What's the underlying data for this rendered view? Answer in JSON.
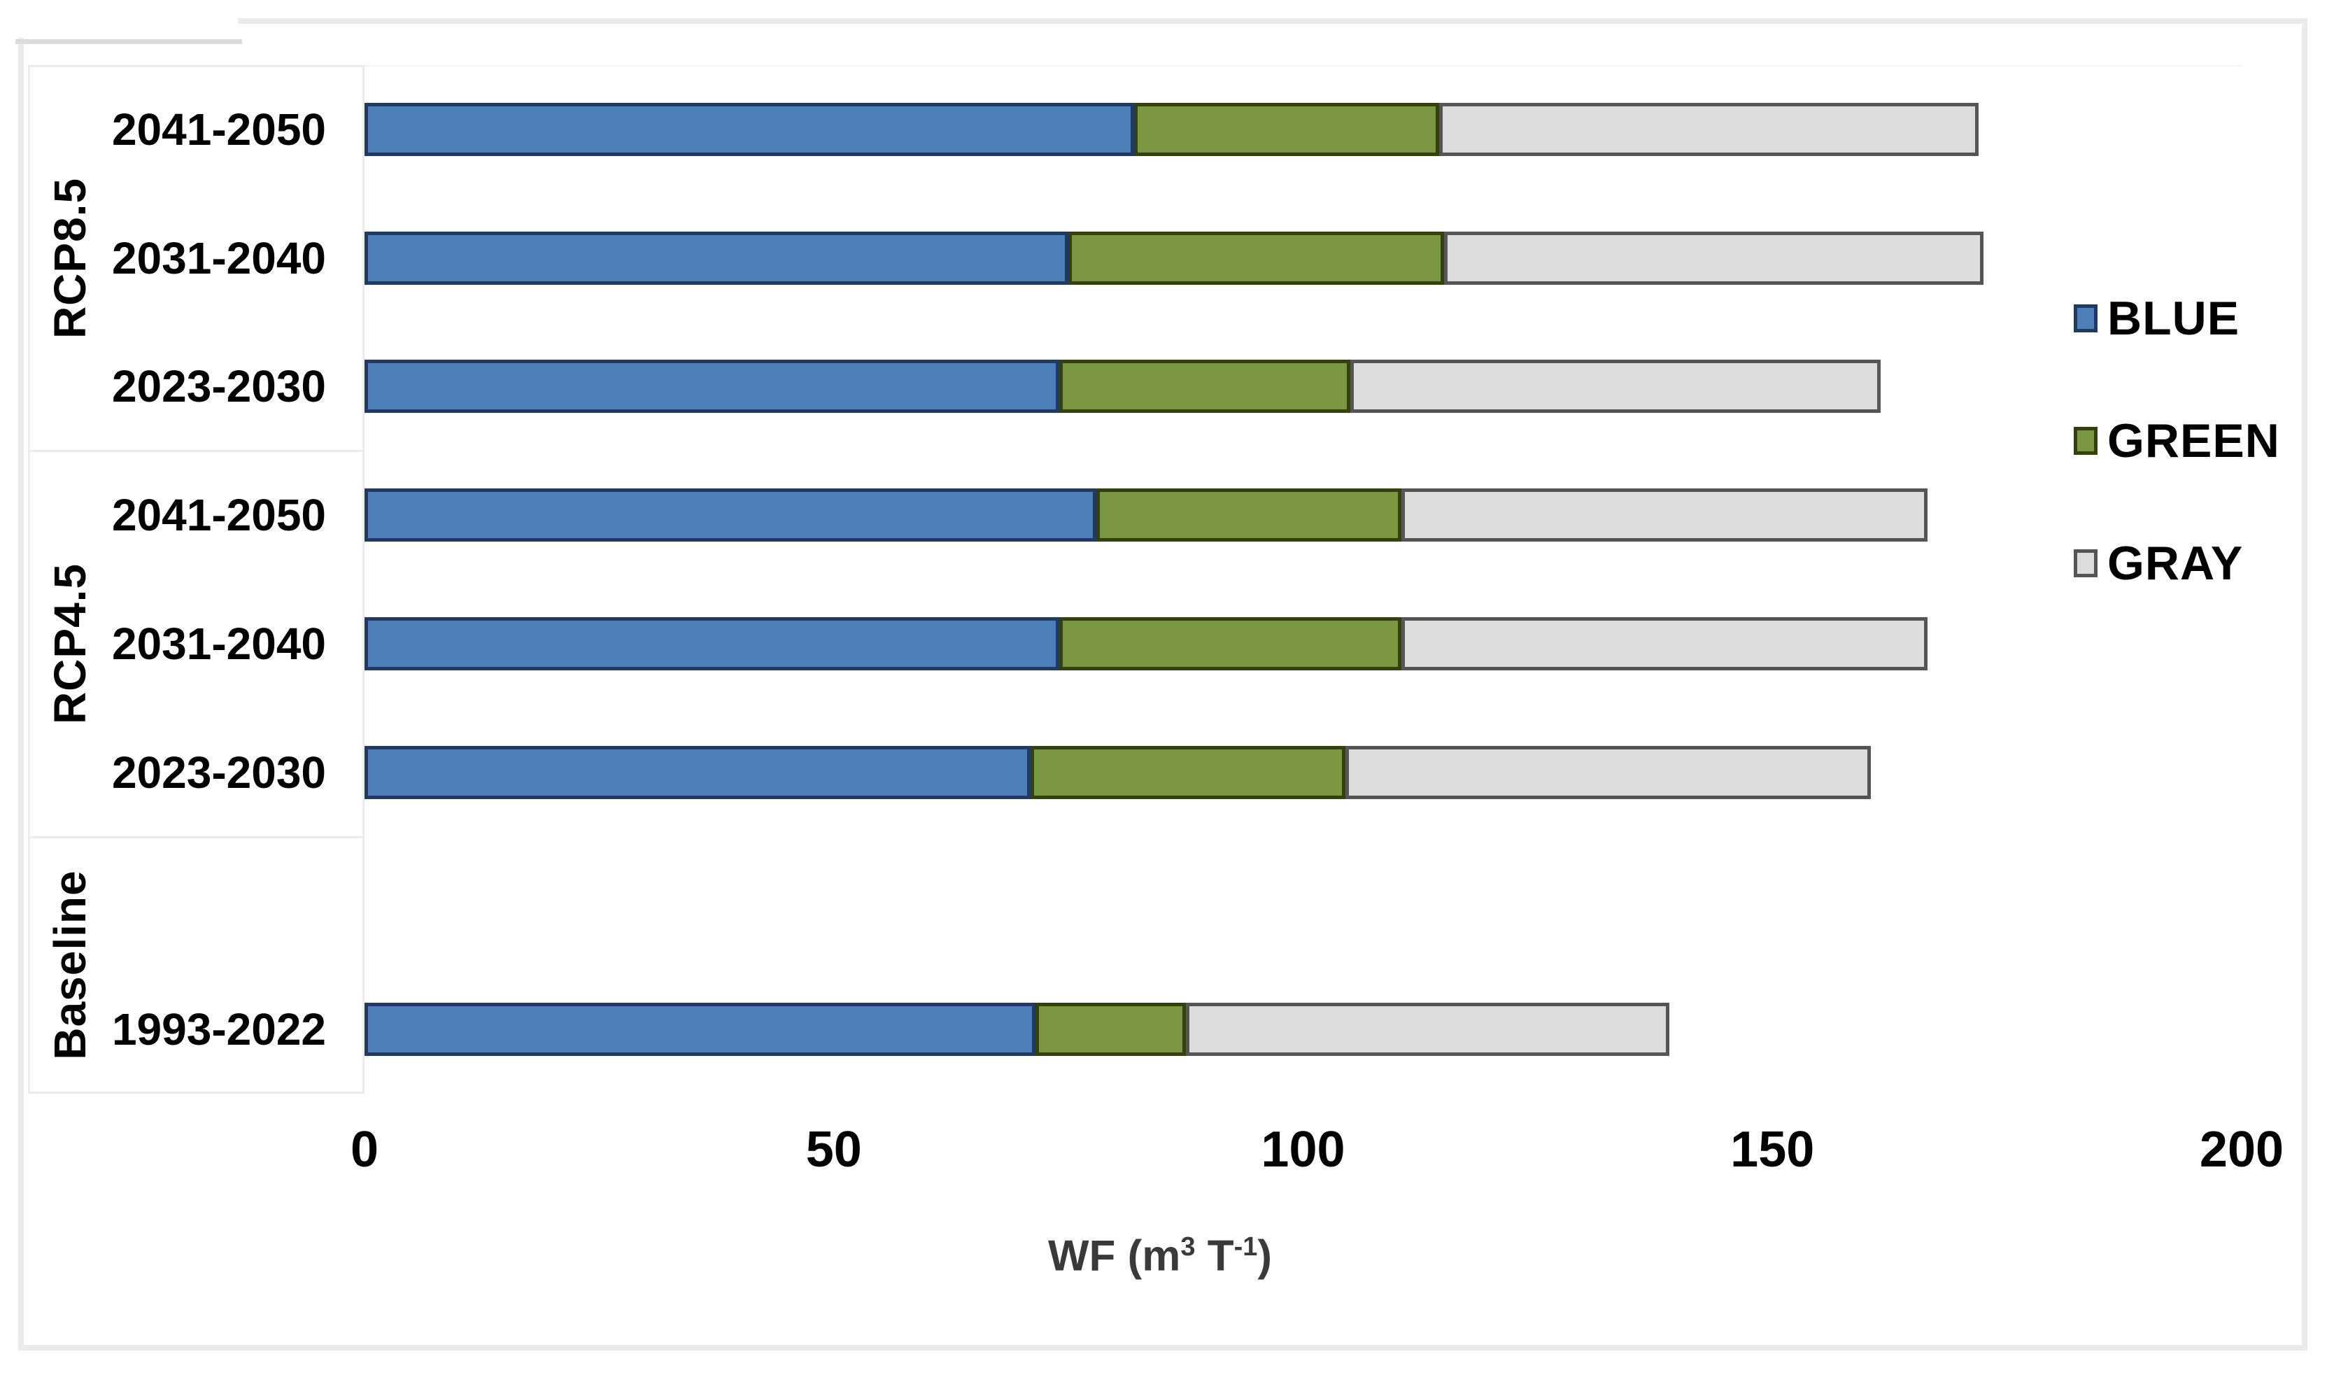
{
  "chart_data": {
    "type": "bar",
    "orientation": "horizontal",
    "stacked": true,
    "title": "",
    "xlabel": "WF (m3 T-1)",
    "xlabel_parts": {
      "pre": "WF (m",
      "sup1": "3",
      "mid": " T",
      "sup2": "-1",
      "post": ")"
    },
    "xlim": [
      0,
      200
    ],
    "xticks": [
      0,
      50,
      100,
      150,
      200
    ],
    "grid": false,
    "legend_position": "right",
    "legend": [
      {
        "label": "BLUE",
        "series": "blue"
      },
      {
        "label": "GREEN",
        "series": "green"
      },
      {
        "label": "GRAY",
        "series": "gray"
      }
    ],
    "series_order": [
      "blue",
      "green",
      "gray"
    ],
    "colors": {
      "blue": {
        "fill": "#4d80b9",
        "border": "#1f3b61"
      },
      "green": {
        "fill": "#789740",
        "border": "#35400f"
      },
      "gray": {
        "fill": "#dcdcdc",
        "border": "#555555"
      }
    },
    "frame_color": "#ebebeb",
    "panel_line_color": "#ececec",
    "groups": [
      {
        "label": "RCP8.5",
        "blank_rows_before": 0,
        "bars": [
          {
            "period": "2041-2050",
            "values": {
              "blue": 82,
              "green": 32.5,
              "gray": 57.5
            }
          },
          {
            "period": "2031-2040",
            "values": {
              "blue": 75,
              "green": 40,
              "gray": 57.5
            }
          },
          {
            "period": "2023-2030",
            "values": {
              "blue": 74,
              "green": 31,
              "gray": 56.5
            }
          }
        ]
      },
      {
        "label": "RCP4.5",
        "blank_rows_before": 0,
        "bars": [
          {
            "period": "2041-2050",
            "values": {
              "blue": 78,
              "green": 32.5,
              "gray": 56
            }
          },
          {
            "period": "2031-2040",
            "values": {
              "blue": 74,
              "green": 36.5,
              "gray": 56
            }
          },
          {
            "period": "2023-2030",
            "values": {
              "blue": 71,
              "green": 33.5,
              "gray": 56
            }
          }
        ]
      },
      {
        "label": "Baseline",
        "blank_rows_before": 1,
        "bars": [
          {
            "period": "1993-2022",
            "values": {
              "blue": 71.5,
              "green": 16,
              "gray": 51.5
            }
          }
        ]
      }
    ]
  }
}
